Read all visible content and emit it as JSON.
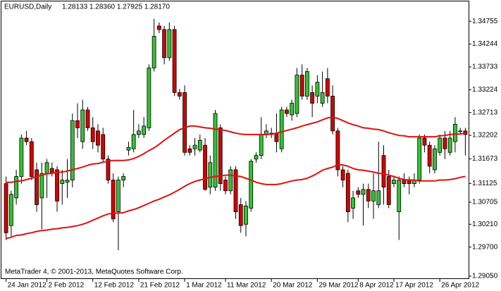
{
  "header": {
    "symbol": "EURUSD,Daily",
    "quote": "1.28133 1.28360 1.27925 1.28170"
  },
  "footer": {
    "copyright": "MetaTrader 4, © 2001-2013, MetaQuotes Software Corp."
  },
  "chart_data": {
    "type": "candlestick",
    "bull_color": "#33c433",
    "bear_color": "#d40000",
    "outline_color": "#000000",
    "ylim": [
      1.29,
      1.352
    ],
    "yticks": [
      1.34755,
      1.34244,
      1.33733,
      1.33224,
      1.32713,
      1.32202,
      1.31673,
      1.31125,
      1.30705,
      {
        "value": 1.3021,
        "label": "1.30210"
      },
      {
        "value": 1.297,
        "label": "1.29700"
      },
      {
        "value": 1.2905,
        "label": "1.29050"
      }
    ],
    "categories": [
      "24 Jan 2012",
      null,
      null,
      null,
      null,
      null,
      null,
      null,
      "2 Feb 2012",
      null,
      null,
      null,
      null,
      null,
      null,
      null,
      null,
      "12 Feb 2012",
      null,
      null,
      null,
      null,
      null,
      null,
      null,
      null,
      "21 Feb 2012",
      null,
      null,
      null,
      null,
      null,
      null,
      null,
      null,
      "1 Mar 2012",
      null,
      null,
      null,
      null,
      null,
      null,
      null,
      "11 Mar 2012",
      null,
      null,
      null,
      null,
      null,
      null,
      null,
      null,
      "20 Mar 2012",
      null,
      null,
      null,
      null,
      null,
      null,
      null,
      null,
      "29 Mar 2012",
      null,
      null,
      null,
      null,
      null,
      null,
      null,
      "8 Apr 2012",
      null,
      null,
      null,
      null,
      null,
      null,
      "17 Apr 2012",
      null,
      null,
      null,
      null,
      null,
      null,
      null,
      null,
      "26 Apr 2012",
      null,
      null,
      null,
      null,
      null
    ],
    "open": [
      1.3112,
      1.3018,
      1.308,
      1.3128,
      1.3214,
      1.3206,
      1.3143,
      1.308,
      1.3135,
      1.3146,
      1.3143,
      1.3112,
      1.3115,
      1.312,
      1.3253,
      1.3206,
      1.3277,
      1.3237,
      1.323,
      1.3222,
      1.3167,
      1.312,
      1.3049,
      1.312,
      1.3187,
      1.319,
      1.3222,
      1.3222,
      1.3237,
      1.3371,
      1.3465,
      1.3457,
      1.3394,
      1.3457,
      1.3316,
      1.3316,
      1.319,
      1.319,
      1.3187,
      1.3198,
      1.3104,
      1.3104,
      1.3237,
      1.312,
      1.3096,
      1.3143,
      1.3065,
      1.3021,
      1.3057,
      1.3167,
      1.3175,
      1.3222,
      1.3222,
      1.3225,
      1.319,
      1.3277,
      1.3266,
      1.3269,
      1.3355,
      1.3308,
      1.3316,
      1.3308,
      1.3292,
      1.3347,
      1.3308,
      1.323,
      1.3143,
      1.3135,
      1.3057,
      1.3096,
      1.3088,
      1.3099,
      1.3073,
      1.3065,
      1.3175,
      1.3128,
      1.3112,
      1.3049,
      1.312,
      1.312,
      1.3112,
      1.312,
      1.3214,
      1.3198,
      1.3143,
      1.3182,
      1.3214,
      1.3182,
      1.3206,
      1.323,
      1.323
    ],
    "high": [
      1.3128,
      1.3096,
      1.3143,
      1.3222,
      1.323,
      1.3214,
      1.3159,
      1.3159,
      1.3167,
      1.3159,
      1.3151,
      1.3143,
      1.3167,
      1.3269,
      1.3292,
      1.33,
      1.3284,
      1.3261,
      1.3245,
      1.3237,
      1.3175,
      1.3135,
      1.3128,
      1.3135,
      1.3206,
      1.3277,
      1.3245,
      1.3261,
      1.3379,
      1.3481,
      1.3473,
      1.3465,
      1.3473,
      1.3465,
      1.3324,
      1.3332,
      1.3198,
      1.3214,
      1.3222,
      1.3214,
      1.3175,
      1.3277,
      1.3245,
      1.3128,
      1.3151,
      1.3151,
      1.308,
      1.3073,
      1.3167,
      1.3182,
      1.3261,
      1.3245,
      1.3237,
      1.3269,
      1.3284,
      1.3284,
      1.33,
      1.3371,
      1.3379,
      1.3371,
      1.3332,
      1.3355,
      1.3363,
      1.3371,
      1.3332,
      1.3237,
      1.3151,
      1.3143,
      1.3096,
      1.3104,
      1.3112,
      1.3112,
      1.3135,
      1.3206,
      1.3198,
      1.3143,
      1.3128,
      1.3128,
      1.3135,
      1.3128,
      1.3135,
      1.3222,
      1.3222,
      1.3206,
      1.3198,
      1.3222,
      1.323,
      1.323,
      1.3261,
      1.3237,
      1.3237
    ],
    "low": [
      1.2986,
      1.2994,
      1.3065,
      1.3112,
      1.3198,
      1.312,
      1.3049,
      1.301,
      1.308,
      1.3128,
      1.3049,
      1.3065,
      1.308,
      1.3104,
      1.3214,
      1.319,
      1.323,
      1.319,
      1.3182,
      1.3159,
      1.3112,
      1.3026,
      1.2963,
      1.3104,
      1.3175,
      1.3182,
      1.3214,
      1.3214,
      1.323,
      1.3363,
      1.3449,
      1.3379,
      1.3387,
      1.3308,
      1.33,
      1.3175,
      1.3175,
      1.3175,
      1.3182,
      1.3096,
      1.3088,
      1.3096,
      1.3096,
      1.3088,
      1.3088,
      1.3033,
      1.3002,
      1.2994,
      1.3049,
      1.3159,
      1.3167,
      1.3214,
      1.3214,
      1.3182,
      1.3182,
      1.3261,
      1.3253,
      1.3261,
      1.33,
      1.33,
      1.3261,
      1.3292,
      1.3284,
      1.3292,
      1.3222,
      1.3128,
      1.3104,
      1.3026,
      1.3033,
      1.308,
      1.3018,
      1.3057,
      1.3033,
      1.3057,
      1.3065,
      1.3057,
      1.3104,
      1.2986,
      1.3104,
      1.3088,
      1.3104,
      1.3112,
      1.3182,
      1.3135,
      1.3135,
      1.3175,
      1.3167,
      1.3175,
      1.3182,
      1.3222,
      1.3175
    ],
    "close": [
      1.3002,
      1.3088,
      1.3128,
      1.3214,
      1.3206,
      1.3128,
      1.3065,
      1.3135,
      1.3159,
      1.3135,
      1.3073,
      1.312,
      1.312,
      1.3253,
      1.3237,
      1.3277,
      1.3237,
      1.3206,
      1.3198,
      1.3167,
      1.312,
      1.3033,
      1.312,
      1.3128,
      1.3193,
      1.3222,
      1.323,
      1.3241,
      1.3371,
      1.3442,
      1.3457,
      1.3394,
      1.3457,
      1.3316,
      1.3308,
      1.3182,
      1.3182,
      1.3198,
      1.3209,
      1.3099,
      1.3159,
      1.3269,
      1.3112,
      1.3096,
      1.3143,
      1.3049,
      1.3018,
      1.3062,
      1.3162,
      1.3175,
      1.3222,
      1.323,
      1.3225,
      1.3206,
      1.3277,
      1.3269,
      1.3292,
      1.3355,
      1.3308,
      1.3363,
      1.3292,
      1.3339,
      1.3316,
      1.3308,
      1.323,
      1.3143,
      1.312,
      1.3049,
      1.308,
      1.3088,
      1.3099,
      1.3073,
      1.3096,
      1.3096,
      1.3104,
      1.3065,
      1.312,
      1.312,
      1.3112,
      1.3112,
      1.312,
      1.3214,
      1.3198,
      1.3151,
      1.319,
      1.3214,
      1.319,
      1.3214,
      1.3245,
      1.323,
      1.3222
    ],
    "overlays": [
      {
        "color": "#e01010",
        "values": [
          1.3115,
          1.3115,
          1.3117,
          1.3118,
          1.3121,
          1.3124,
          1.3128,
          1.3131,
          1.3134,
          1.3135,
          1.3137,
          1.3138,
          1.314,
          1.3143,
          1.3146,
          1.3149,
          1.3153,
          1.3156,
          1.3157,
          1.316,
          1.3162,
          1.3164,
          1.3164,
          1.3164,
          1.3165,
          1.3168,
          1.3173,
          1.3179,
          1.3186,
          1.3192,
          1.32,
          1.3209,
          1.3217,
          1.3225,
          1.3233,
          1.3237,
          1.3241,
          1.3241,
          1.3239,
          1.3237,
          1.3236,
          1.3234,
          1.3233,
          1.3231,
          1.3228,
          1.3225,
          1.3223,
          1.3222,
          1.3222,
          1.3222,
          1.3222,
          1.3222,
          1.3223,
          1.3225,
          1.3228,
          1.3231,
          1.3234,
          1.3237,
          1.3241,
          1.3244,
          1.3247,
          1.325,
          1.3255,
          1.3259,
          1.3261,
          1.3258,
          1.3253,
          1.3248,
          1.3244,
          1.3241,
          1.3237,
          1.3236,
          1.3234,
          1.3233,
          1.323,
          1.3226,
          1.3223,
          1.322,
          1.3219,
          1.3217,
          1.3217,
          1.3217,
          1.3217,
          1.3217,
          1.3217,
          1.3219,
          1.322,
          1.3222,
          1.3223,
          1.3223,
          1.3225
        ]
      },
      {
        "color": "#e01010",
        "values": [
          1.2989,
          1.2992,
          1.2996,
          1.2997,
          1.3,
          1.3002,
          1.3005,
          1.3007,
          1.3008,
          1.301,
          1.3011,
          1.3013,
          1.3014,
          1.3016,
          1.3018,
          1.3021,
          1.3025,
          1.303,
          1.3035,
          1.304,
          1.3044,
          1.3046,
          1.3046,
          1.3047,
          1.3051,
          1.3054,
          1.3058,
          1.3063,
          1.3068,
          1.3073,
          1.3077,
          1.3082,
          1.3087,
          1.3093,
          1.3099,
          1.3106,
          1.3112,
          1.3117,
          1.312,
          1.3123,
          1.3126,
          1.3128,
          1.3129,
          1.3131,
          1.3131,
          1.3129,
          1.3128,
          1.3124,
          1.312,
          1.3115,
          1.3112,
          1.311,
          1.311,
          1.311,
          1.3112,
          1.3115,
          1.3118,
          1.312,
          1.3121,
          1.3124,
          1.3129,
          1.3135,
          1.3142,
          1.3146,
          1.3149,
          1.3154,
          1.3154,
          1.3151,
          1.3146,
          1.3143,
          1.3142,
          1.314,
          1.3138,
          1.3135,
          1.3134,
          1.3131,
          1.3128,
          1.3124,
          1.3121,
          1.312,
          1.312,
          1.3118,
          1.3118,
          1.3118,
          1.3118,
          1.312,
          1.312,
          1.3121,
          1.3123,
          1.3126,
          1.3128
        ]
      }
    ]
  }
}
